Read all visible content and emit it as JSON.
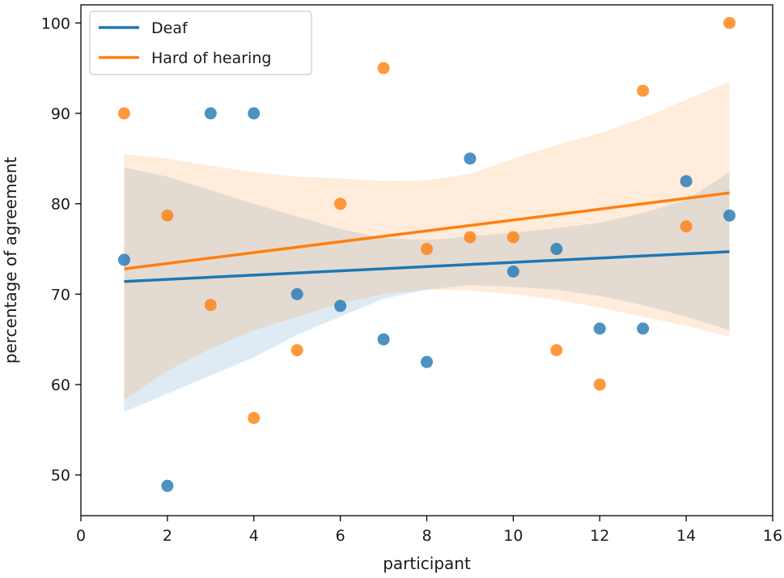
{
  "chart_data": {
    "type": "scatter",
    "xlabel": "participant",
    "ylabel": "percentage of agreement",
    "xlim": [
      0,
      16
    ],
    "ylim": [
      45.5,
      102
    ],
    "xticks": [
      0,
      2,
      4,
      6,
      8,
      10,
      12,
      14,
      16
    ],
    "yticks": [
      50,
      60,
      70,
      80,
      90,
      100
    ],
    "grid": false,
    "legend_position": "top-left",
    "colors": {
      "Deaf": "#1f77b4",
      "Hard of hearing": "#ff7f0e"
    },
    "series": [
      {
        "name": "Deaf",
        "points": [
          [
            1,
            73.8
          ],
          [
            2,
            48.8
          ],
          [
            3,
            90
          ],
          [
            4,
            90
          ],
          [
            5,
            70
          ],
          [
            6,
            68.7
          ],
          [
            7,
            65
          ],
          [
            8,
            62.5
          ],
          [
            9,
            85
          ],
          [
            10,
            72.5
          ],
          [
            11,
            75
          ],
          [
            12,
            66.2
          ],
          [
            13,
            66.2
          ],
          [
            14,
            82.5
          ],
          [
            15,
            78.7
          ]
        ],
        "regression": {
          "x": [
            1,
            15
          ],
          "y": [
            71.4,
            74.7
          ]
        },
        "ci_upper": [
          [
            1,
            84
          ],
          [
            2,
            83
          ],
          [
            3,
            81.5
          ],
          [
            4,
            80
          ],
          [
            5,
            78.6
          ],
          [
            6,
            77.2
          ],
          [
            7,
            76.2
          ],
          [
            8,
            76
          ],
          [
            9,
            76.4
          ],
          [
            10,
            76.8
          ],
          [
            11,
            77.3
          ],
          [
            12,
            77.9
          ],
          [
            13,
            79
          ],
          [
            14,
            80.4
          ],
          [
            15,
            83.5
          ]
        ],
        "ci_lower": [
          [
            1,
            57
          ],
          [
            2,
            59
          ],
          [
            3,
            61
          ],
          [
            4,
            63
          ],
          [
            5,
            65.5
          ],
          [
            6,
            67.5
          ],
          [
            7,
            69.5
          ],
          [
            8,
            70.5
          ],
          [
            9,
            71
          ],
          [
            10,
            70.8
          ],
          [
            11,
            70.5
          ],
          [
            12,
            69.8
          ],
          [
            13,
            68.8
          ],
          [
            14,
            67.5
          ],
          [
            15,
            66
          ]
        ]
      },
      {
        "name": "Hard of hearing",
        "points": [
          [
            1,
            90
          ],
          [
            2,
            78.7
          ],
          [
            3,
            68.8
          ],
          [
            4,
            56.3
          ],
          [
            5,
            63.8
          ],
          [
            6,
            80
          ],
          [
            7,
            95
          ],
          [
            8,
            75
          ],
          [
            9,
            76.3
          ],
          [
            10,
            76.3
          ],
          [
            11,
            63.8
          ],
          [
            12,
            60
          ],
          [
            13,
            92.5
          ],
          [
            14,
            77.5
          ],
          [
            15,
            100
          ]
        ],
        "regression": {
          "x": [
            1,
            15
          ],
          "y": [
            72.8,
            81.2
          ]
        },
        "ci_upper": [
          [
            1,
            85.5
          ],
          [
            2,
            85
          ],
          [
            3,
            84.2
          ],
          [
            4,
            83.5
          ],
          [
            5,
            83
          ],
          [
            6,
            82.8
          ],
          [
            7,
            82.5
          ],
          [
            8,
            82.6
          ],
          [
            9,
            83.3
          ],
          [
            10,
            85
          ],
          [
            11,
            86.5
          ],
          [
            12,
            87.8
          ],
          [
            13,
            89.5
          ],
          [
            14,
            91.5
          ],
          [
            15,
            93.5
          ]
        ],
        "ci_lower": [
          [
            1,
            58.3
          ],
          [
            2,
            61.5
          ],
          [
            3,
            64
          ],
          [
            4,
            66
          ],
          [
            5,
            67.5
          ],
          [
            6,
            69
          ],
          [
            7,
            70
          ],
          [
            8,
            70.5
          ],
          [
            9,
            70.4
          ],
          [
            10,
            70
          ],
          [
            11,
            69.4
          ],
          [
            12,
            68.5
          ],
          [
            13,
            67.5
          ],
          [
            14,
            66.5
          ],
          [
            15,
            65.3
          ]
        ]
      }
    ]
  }
}
